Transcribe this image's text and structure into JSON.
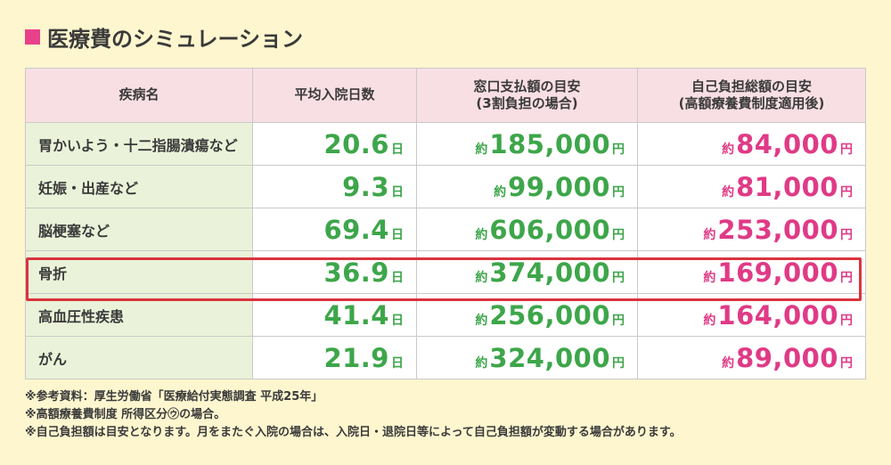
{
  "title": "医療費のシミュレーション",
  "colors": {
    "accent_pink": "#e03a86",
    "accent_green": "#3da64a",
    "header_bg": "#f8dfe4",
    "highlight_border": "#d9343d"
  },
  "table": {
    "headers": [
      {
        "line1": "疾病名",
        "line2": ""
      },
      {
        "line1": "平均入院日数",
        "line2": ""
      },
      {
        "line1": "窓口支払額の目安",
        "line2": "(3割負担の場合)"
      },
      {
        "line1": "自己負担総額の目安",
        "line2": "(高額療養費制度適用後)"
      }
    ],
    "rows": [
      {
        "name": "胃かいよう・十二指腸潰瘍など",
        "days": "20.6",
        "days_unit": "日",
        "window_prefix": "約",
        "window": "185,000",
        "window_unit": "円",
        "total_prefix": "約",
        "total": "84,000",
        "total_unit": "円"
      },
      {
        "name": "妊娠・出産など",
        "days": "9.3",
        "days_unit": "日",
        "window_prefix": "約",
        "window": "99,000",
        "window_unit": "円",
        "total_prefix": "約",
        "total": "81,000",
        "total_unit": "円"
      },
      {
        "name": "脳梗塞など",
        "days": "69.4",
        "days_unit": "日",
        "window_prefix": "約",
        "window": "606,000",
        "window_unit": "円",
        "total_prefix": "約",
        "total": "253,000",
        "total_unit": "円"
      },
      {
        "name": "骨折",
        "days": "36.9",
        "days_unit": "日",
        "window_prefix": "約",
        "window": "374,000",
        "window_unit": "円",
        "total_prefix": "約",
        "total": "169,000",
        "total_unit": "円",
        "highlighted": true
      },
      {
        "name": "高血圧性疾患",
        "days": "41.4",
        "days_unit": "日",
        "window_prefix": "約",
        "window": "256,000",
        "window_unit": "円",
        "total_prefix": "約",
        "total": "164,000",
        "total_unit": "円"
      },
      {
        "name": "がん",
        "days": "21.9",
        "days_unit": "日",
        "window_prefix": "約",
        "window": "324,000",
        "window_unit": "円",
        "total_prefix": "約",
        "total": "89,000",
        "total_unit": "円"
      }
    ]
  },
  "notes": [
    "※参考資料：厚生労働省「医療給付実態調査 平成25年」",
    "※高額療養費制度 所得区分㋒の場合。",
    "※自己負担額は目安となります。月をまたぐ入院の場合は、入院日・退院日等によって自己負担額が変動する場合があります。"
  ]
}
